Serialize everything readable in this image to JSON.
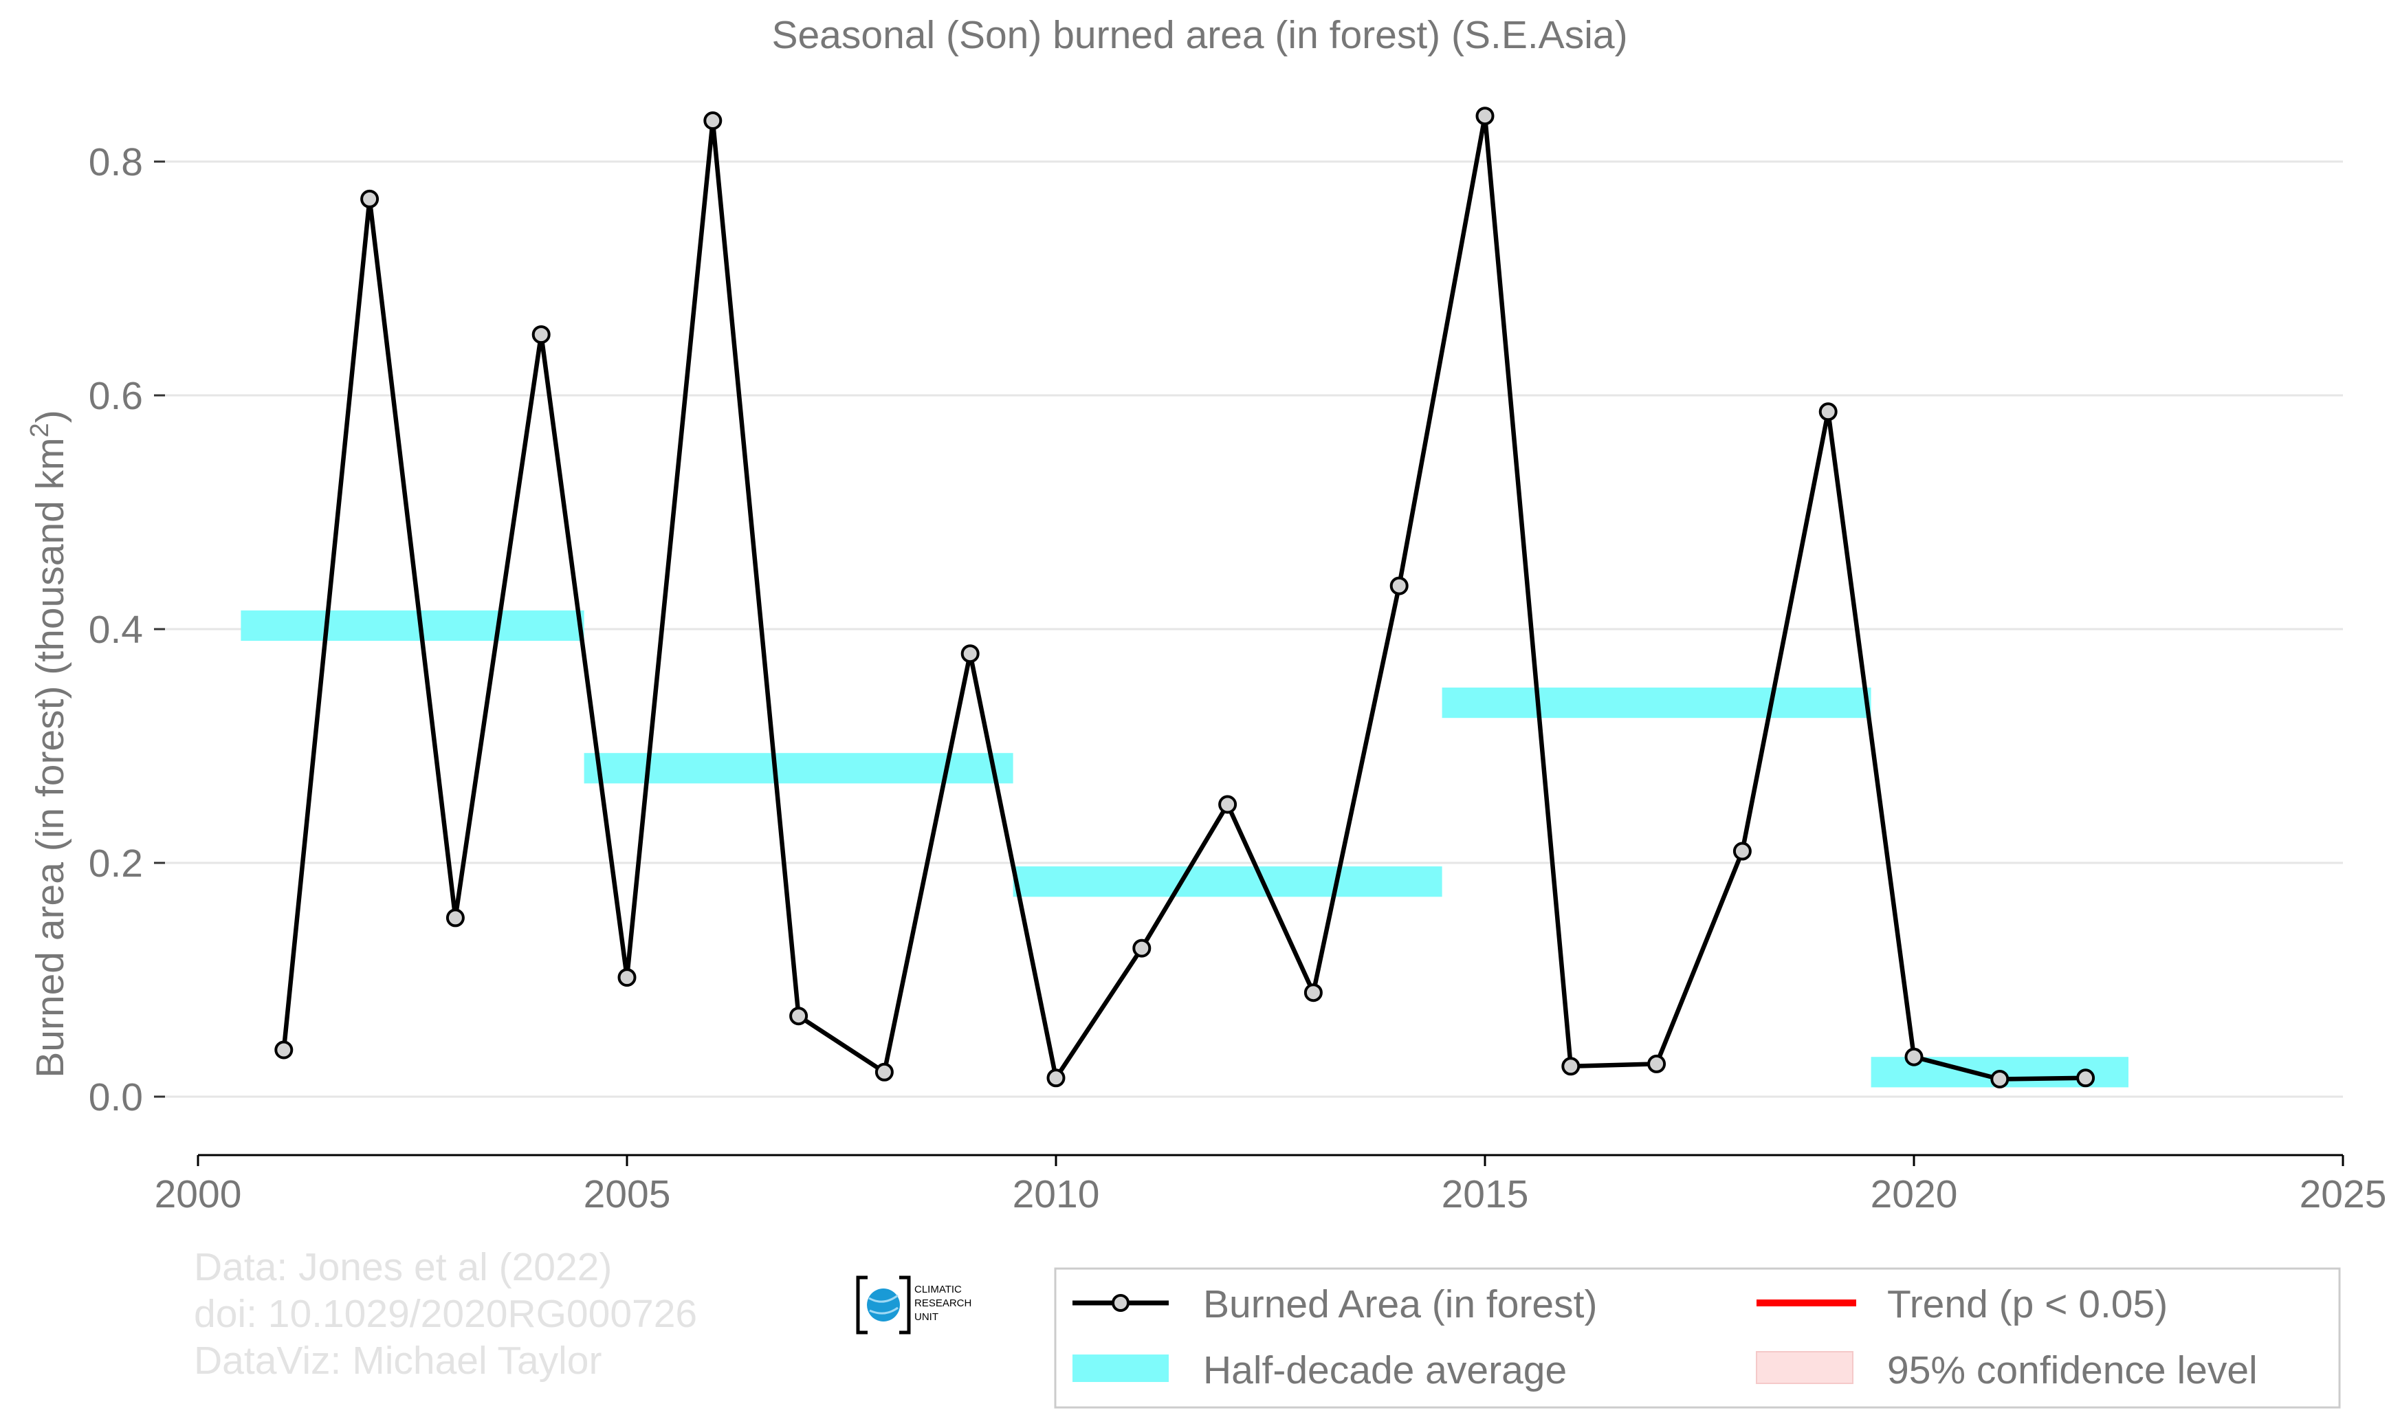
{
  "chart_data": {
    "type": "line",
    "title": "Seasonal (Son) burned area (in forest) (S.E.Asia)",
    "ylabel": "Burned area (in forest) (thousand km²)",
    "ylabel_main": "Burned area (in forest) (thousand km",
    "ylabel_sup": "2",
    "ylabel_close": ")",
    "xlabel": "",
    "xlim": [
      2000,
      2025
    ],
    "ylim": [
      -0.05,
      0.85
    ],
    "x_ticks": [
      2000,
      2005,
      2010,
      2015,
      2020,
      2025
    ],
    "x_tick_labels": [
      "2000",
      "2005",
      "2010",
      "2015",
      "2020",
      "2025"
    ],
    "y_ticks": [
      0.0,
      0.2,
      0.4,
      0.6,
      0.8
    ],
    "y_tick_labels": [
      "0.0",
      "0.2",
      "0.4",
      "0.6",
      "0.8"
    ],
    "grid": true,
    "series": [
      {
        "name": "Burned Area (in forest)",
        "x": [
          2001,
          2002,
          2003,
          2004,
          2005,
          2006,
          2007,
          2008,
          2009,
          2010,
          2011,
          2012,
          2013,
          2014,
          2015,
          2016,
          2017,
          2018,
          2019,
          2020,
          2021,
          2022
        ],
        "y": [
          0.04,
          0.768,
          0.153,
          0.652,
          0.102,
          0.835,
          0.069,
          0.021,
          0.379,
          0.016,
          0.127,
          0.25,
          0.089,
          0.437,
          0.839,
          0.026,
          0.028,
          0.21,
          0.586,
          0.034,
          0.015,
          0.016
        ]
      }
    ],
    "half_decade_average": {
      "name": "Half-decade average",
      "segments": [
        {
          "x_start": 2000.5,
          "x_end": 2004.5,
          "y": 0.403
        },
        {
          "x_start": 2004.5,
          "x_end": 2009.5,
          "y": 0.281
        },
        {
          "x_start": 2009.5,
          "x_end": 2014.5,
          "y": 0.184
        },
        {
          "x_start": 2014.5,
          "x_end": 2019.5,
          "y": 0.337
        },
        {
          "x_start": 2019.5,
          "x_end": 2022.5,
          "y": 0.021
        }
      ]
    },
    "legend": {
      "placement": "bottom-right",
      "entries": [
        {
          "label": "Burned Area (in forest)"
        },
        {
          "label": "Trend (p < 0.05)"
        },
        {
          "label": "Half-decade average"
        },
        {
          "label": "95% confidence level"
        }
      ]
    },
    "colors": {
      "line": "#000000",
      "marker_fill": "#d3d3d3",
      "half_decade": "#7ffbfb",
      "trend": "#ff0000",
      "confidence": "#fde0e0",
      "text": "#777777",
      "credit": "#e3e3e3",
      "grid": "#e6e6e6"
    }
  },
  "credits": {
    "line1": "Data: Jones et al (2022)",
    "line2": "doi: 10.1029/2020RG000726",
    "line3": "DataViz: Michael Taylor"
  },
  "logo": {
    "text1": "CLIMATIC",
    "text2": "RESEARCH",
    "text3": "UNIT",
    "icon": "globe-logo-icon"
  }
}
